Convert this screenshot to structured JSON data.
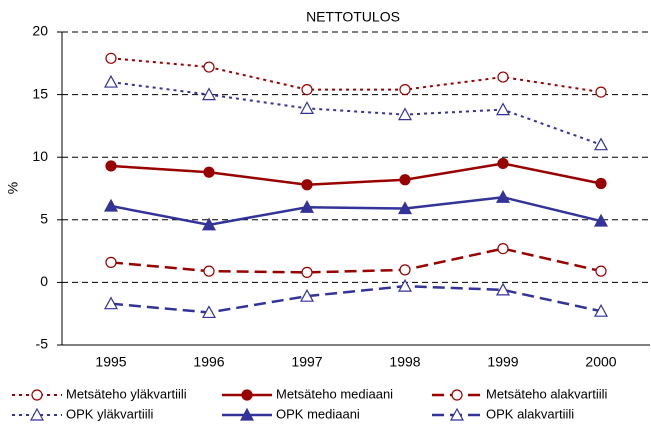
{
  "chart_data": {
    "type": "line",
    "title": "NETTOTULOS",
    "y_label": "%",
    "categories": [
      "1995",
      "1996",
      "1997",
      "1998",
      "1999",
      "2000"
    ],
    "ylim": [
      -5,
      20
    ],
    "yticks": [
      -5,
      0,
      5,
      10,
      15,
      20
    ],
    "grid": true,
    "series": [
      {
        "name": "Metsäteho yläkvartiili",
        "color": "#990000",
        "dash": "dotted",
        "marker": "circle",
        "marker_filled": false,
        "values": [
          17.9,
          17.2,
          15.4,
          15.4,
          16.4,
          15.2
        ]
      },
      {
        "name": "Metsäteho mediaani",
        "color": "#990000",
        "dash": "solid",
        "marker": "circle",
        "marker_filled": true,
        "values": [
          9.3,
          8.8,
          7.8,
          8.2,
          9.5,
          7.9
        ]
      },
      {
        "name": "Metsäteho alakvartiili",
        "color": "#990000",
        "dash": "long",
        "marker": "circle",
        "marker_filled": false,
        "values": [
          1.6,
          0.9,
          0.8,
          1.0,
          2.7,
          0.9
        ]
      },
      {
        "name": "OPK yläkvartiili",
        "color": "#333399",
        "dash": "dotted",
        "marker": "triangle",
        "marker_filled": false,
        "values": [
          16.0,
          15.0,
          13.9,
          13.4,
          13.8,
          11.0
        ]
      },
      {
        "name": "OPK mediaani",
        "color": "#333399",
        "dash": "solid",
        "marker": "triangle",
        "marker_filled": true,
        "values": [
          6.1,
          4.6,
          6.0,
          5.9,
          6.8,
          4.9
        ]
      },
      {
        "name": "OPK alakvartiili",
        "color": "#333399",
        "dash": "long",
        "marker": "triangle",
        "marker_filled": false,
        "values": [
          -1.7,
          -2.4,
          -1.1,
          -0.3,
          -0.6,
          -2.3
        ]
      }
    ]
  }
}
